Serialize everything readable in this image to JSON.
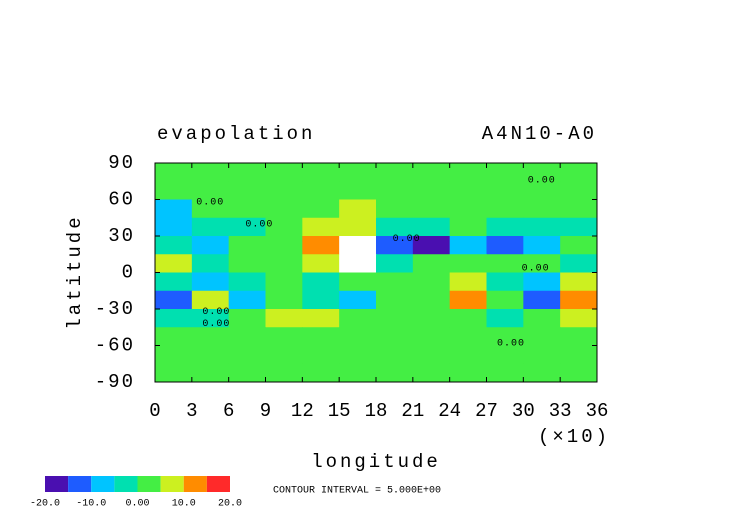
{
  "chart_data": {
    "type": "contour",
    "title": "evapolation",
    "subtitle": "A4N10-A0",
    "x_label": "longitude",
    "x_label_unit": "(×10)",
    "y_label": "latitude",
    "xlim": [
      0,
      36
    ],
    "xticks": [
      0,
      3,
      6,
      9,
      12,
      15,
      18,
      21,
      24,
      27,
      30,
      33,
      36
    ],
    "ylim": [
      -90,
      90
    ],
    "yticks": [
      -90,
      -60,
      -30,
      0,
      30,
      60,
      90
    ],
    "x": [
      1.5,
      4.5,
      7.5,
      10.5,
      13.5,
      16.5,
      19.5,
      22.5,
      25.5,
      28.5,
      31.5,
      34.5
    ],
    "y": [
      82.5,
      67.5,
      52.5,
      37.5,
      22.5,
      7.5,
      -7.5,
      -22.5,
      -37.5,
      -52.5,
      -67.5,
      -82.5
    ],
    "z": [
      [
        2,
        2,
        2,
        2,
        2,
        2,
        2,
        2,
        2,
        2,
        2,
        2
      ],
      [
        2,
        2,
        2,
        2,
        2,
        2,
        2,
        2,
        2,
        2,
        2,
        2
      ],
      [
        -6,
        2,
        2,
        2,
        2,
        6,
        2,
        2,
        2,
        2,
        2,
        2
      ],
      [
        -6,
        -3,
        -3,
        2,
        8,
        8,
        -4,
        -3,
        2,
        -4,
        -3,
        -3
      ],
      [
        -3,
        -6,
        2,
        2,
        14,
        25,
        -15,
        -18,
        -8,
        -12,
        -6,
        2
      ],
      [
        6,
        -3,
        2,
        2,
        6,
        25,
        -3,
        2,
        2,
        2,
        2,
        -3
      ],
      [
        -3,
        -6,
        -3,
        2,
        -3,
        2,
        2,
        2,
        6,
        -3,
        -6,
        6
      ],
      [
        -12,
        8,
        -6,
        2,
        -3,
        -6,
        2,
        2,
        12,
        2,
        -12,
        14
      ],
      [
        -3,
        -3,
        2,
        6,
        8,
        2,
        2,
        2,
        2,
        -3,
        2,
        6
      ],
      [
        2,
        2,
        2,
        2,
        2,
        2,
        2,
        2,
        2,
        2,
        2,
        2
      ],
      [
        2,
        2,
        2,
        2,
        2,
        2,
        2,
        2,
        2,
        2,
        2,
        2
      ],
      [
        2,
        2,
        2,
        2,
        2,
        2,
        2,
        2,
        2,
        2,
        2,
        2
      ]
    ],
    "contour_labels": [
      {
        "text": "0.00",
        "x": 4.5,
        "y": 58
      },
      {
        "text": "0.00",
        "x": 8.5,
        "y": 40
      },
      {
        "text": "0.00",
        "x": 20.5,
        "y": 28
      },
      {
        "text": "0.00",
        "x": 31.5,
        "y": 76
      },
      {
        "text": "0.00",
        "x": 31,
        "y": 4
      },
      {
        "text": "0.00",
        "x": 5,
        "y": -32
      },
      {
        "text": "0.00",
        "x": 5,
        "y": -42
      },
      {
        "text": "0.00",
        "x": 29,
        "y": -58
      }
    ],
    "colorbar": {
      "levels": [
        -20,
        -15,
        -10,
        -5,
        0,
        5,
        10,
        15,
        20
      ],
      "colors": [
        "#4a0fb0",
        "#1e5cff",
        "#00c4ff",
        "#00e0b0",
        "#44ee44",
        "#ccf020",
        "#ff8c00",
        "#ff2a2a"
      ],
      "over_color": "#ffffff",
      "ticks": [
        {
          "value": -20,
          "label": "-20.0"
        },
        {
          "value": -10,
          "label": "-10.0"
        },
        {
          "value": 0,
          "label": "0.00"
        },
        {
          "value": 10,
          "label": "10.0"
        },
        {
          "value": 20,
          "label": "20.0"
        }
      ]
    },
    "contour_interval": "CONTOUR INTERVAL = 5.000E+00"
  }
}
